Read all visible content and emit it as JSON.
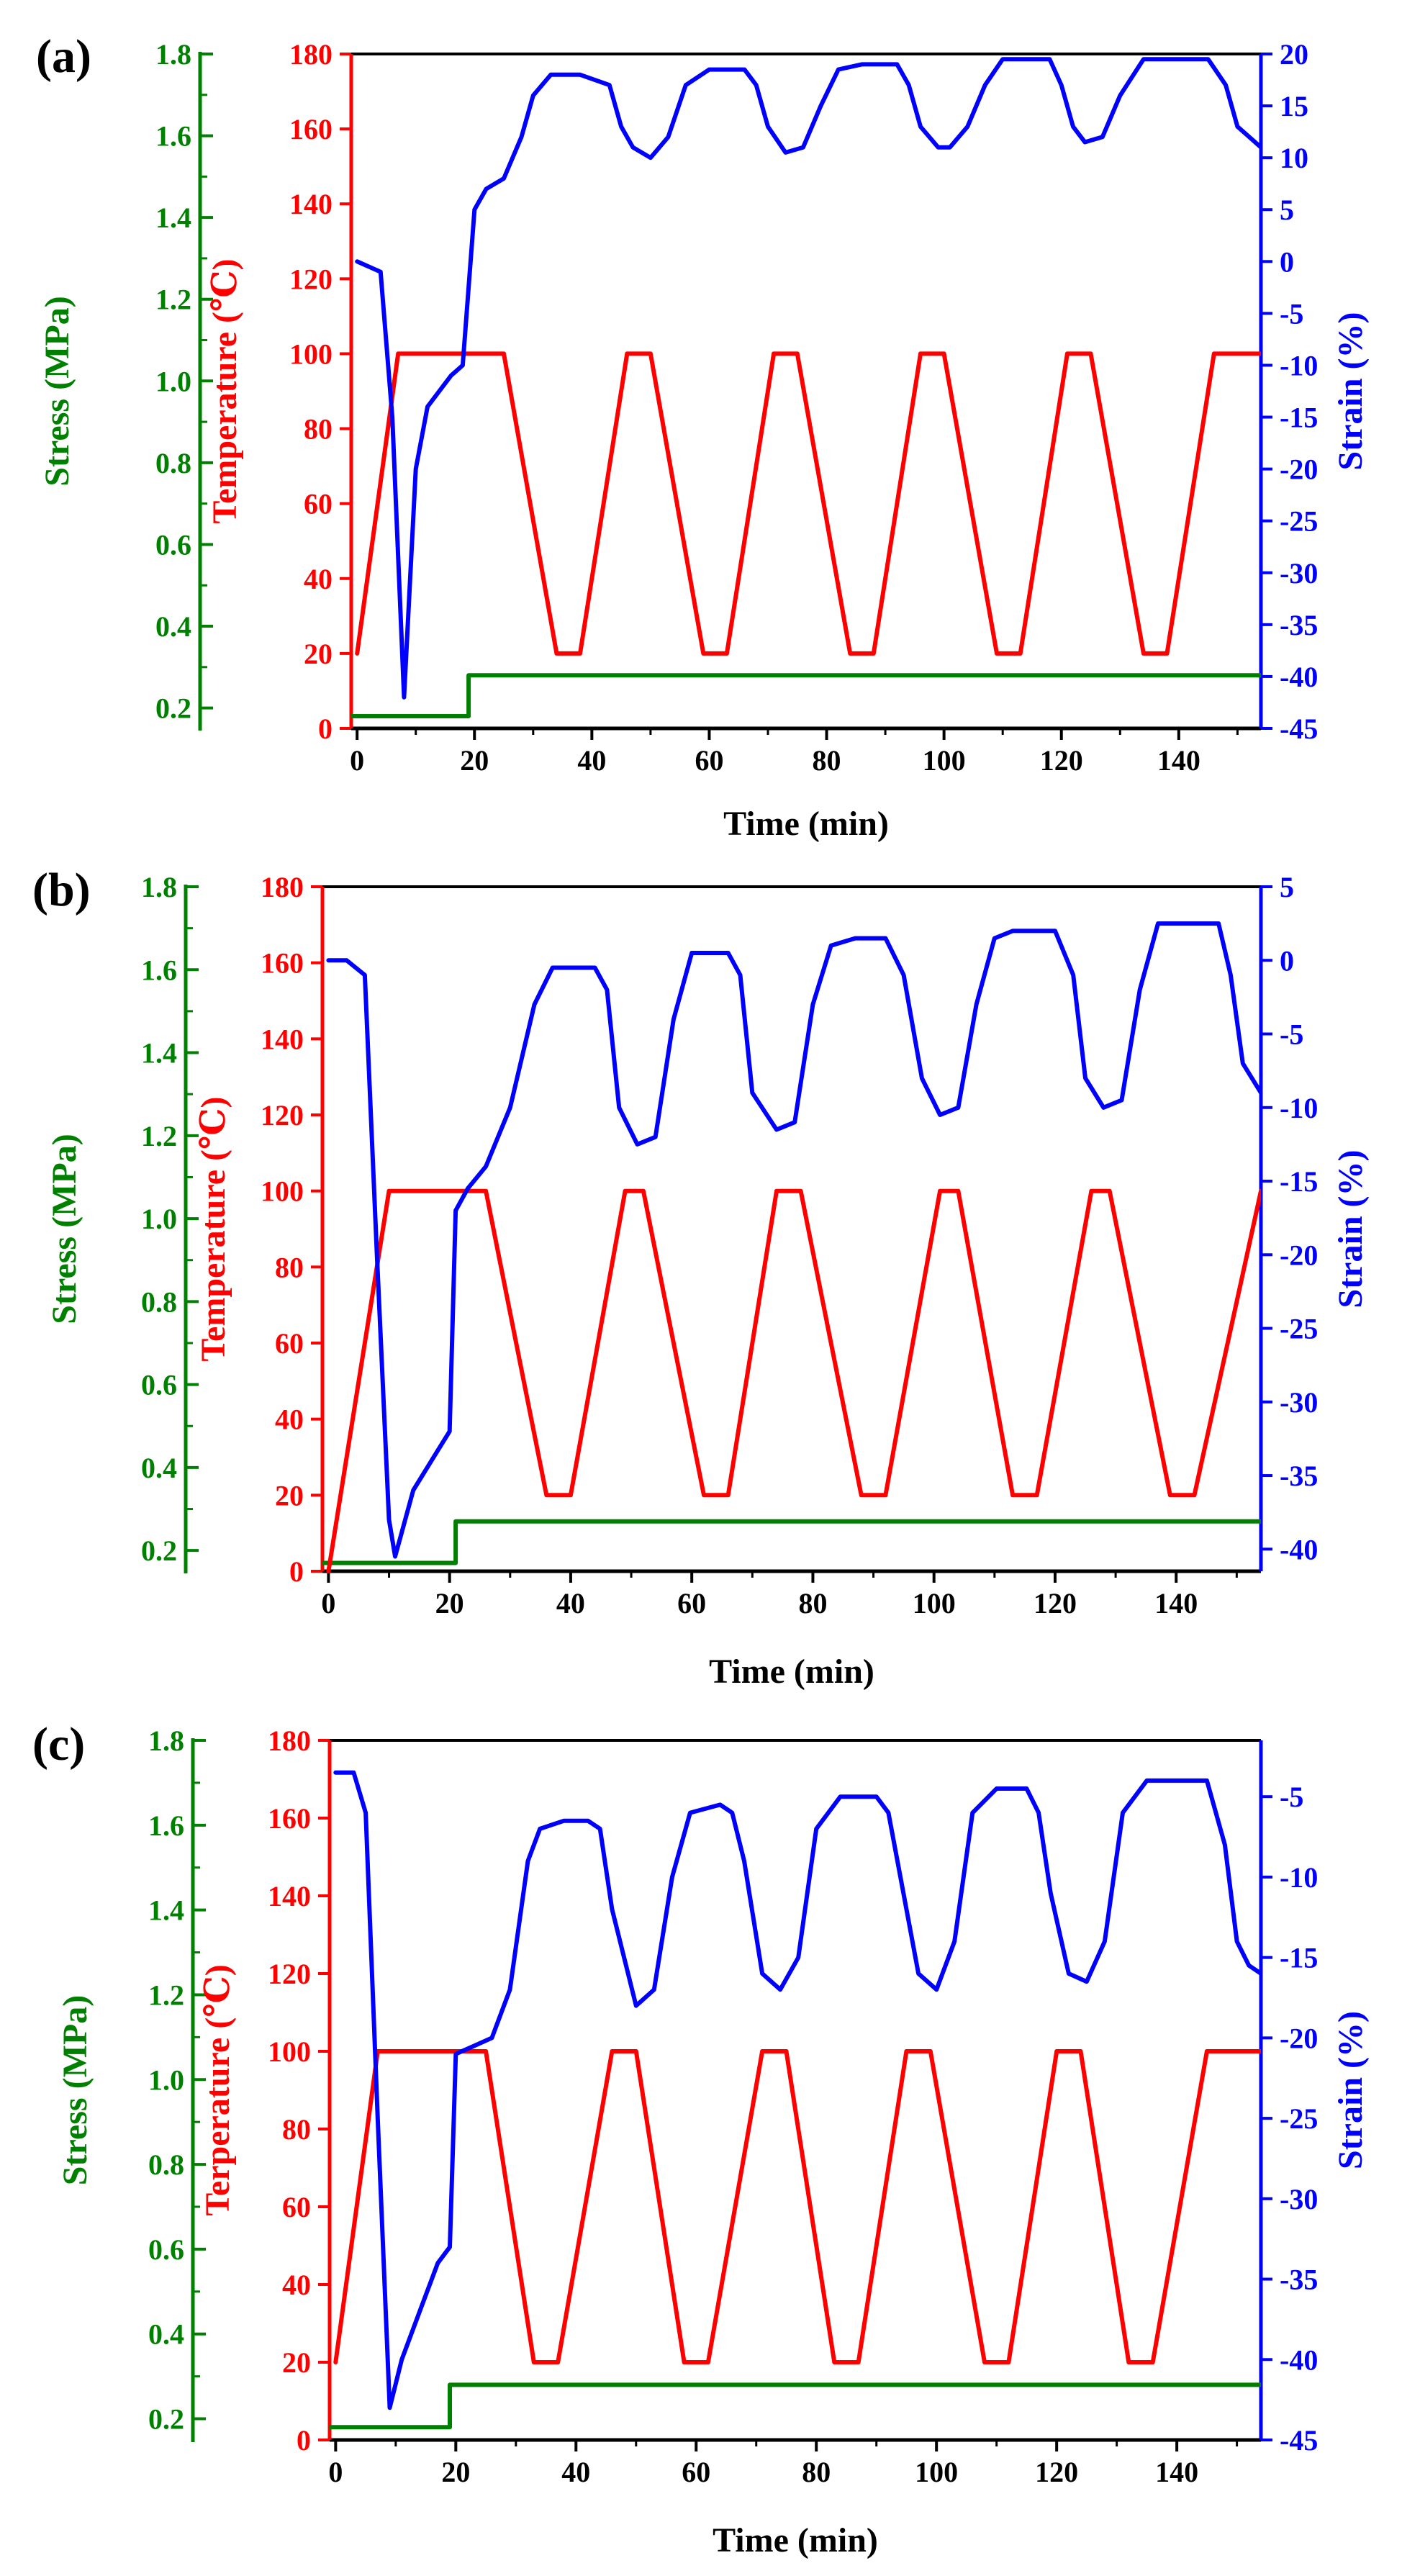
{
  "chart_data": [
    {
      "type": "line",
      "panel_label": "(a)",
      "xlabel": "Time (min)",
      "x_ticks": [
        "0",
        "20",
        "40",
        "60",
        "80",
        "100",
        "120",
        "140"
      ],
      "xlim": [
        -1,
        154
      ],
      "axes": {
        "stress": {
          "label": "Stress (MPa)",
          "lim": [
            0.15,
            1.8
          ],
          "ticks": [
            "0.2",
            "0.4",
            "0.6",
            "0.8",
            "1.0",
            "1.2",
            "1.4",
            "1.6",
            "1.8"
          ],
          "color": "#008000"
        },
        "temperature": {
          "label": "Temperature (℃)",
          "lim": [
            0,
            180
          ],
          "ticks": [
            "0",
            "20",
            "40",
            "60",
            "80",
            "100",
            "120",
            "140",
            "160",
            "180"
          ],
          "color": "#ff0000"
        },
        "strain": {
          "label": "Strain (%)",
          "lim": [
            -45,
            20
          ],
          "ticks": [
            "20",
            "15",
            "10",
            "5",
            "0",
            "-5",
            "-10",
            "-15",
            "-20",
            "-25",
            "-30",
            "-35",
            "-40",
            "-45"
          ],
          "color": "#0000ff"
        }
      },
      "series": [
        {
          "name": "Stress",
          "axis": "stress",
          "color": "#008000",
          "x": [
            -1,
            19,
            19,
            154
          ],
          "y": [
            0.18,
            0.18,
            0.28,
            0.28
          ]
        },
        {
          "name": "Temperature",
          "axis": "temperature",
          "color": "#ff0000",
          "x": [
            0,
            7,
            25,
            34,
            38,
            46,
            50,
            59,
            63,
            71,
            75,
            84,
            88,
            96,
            100,
            109,
            113,
            121,
            125,
            134,
            138,
            146,
            150,
            154
          ],
          "y": [
            20,
            100,
            100,
            20,
            20,
            100,
            100,
            20,
            20,
            100,
            100,
            20,
            20,
            100,
            100,
            20,
            20,
            100,
            100,
            20,
            20,
            100,
            100,
            100
          ]
        },
        {
          "name": "Strain",
          "axis": "strain",
          "color": "#0000ff",
          "x": [
            0,
            4,
            6,
            8,
            10,
            12,
            16,
            18,
            20,
            22,
            25,
            28,
            30,
            33,
            38,
            43,
            45,
            47,
            50,
            53,
            56,
            60,
            66,
            68,
            70,
            73,
            76,
            79,
            82,
            86,
            92,
            94,
            96,
            99,
            101,
            104,
            107,
            110,
            118,
            120,
            122,
            124,
            127,
            130,
            134,
            140,
            145,
            148,
            150,
            152,
            154
          ],
          "y": [
            0,
            -1,
            -15,
            -42,
            -20,
            -14,
            -11,
            -10,
            5,
            7,
            8,
            12,
            16,
            18,
            18,
            17,
            13,
            11,
            10,
            12,
            17,
            18.5,
            18.5,
            17,
            13,
            10.5,
            11,
            15,
            18.5,
            19,
            19,
            17,
            13,
            11,
            11,
            13,
            17,
            19.5,
            19.5,
            17,
            13,
            11.5,
            12,
            16,
            19.5,
            19.5,
            19.5,
            17,
            13,
            12,
            11
          ]
        }
      ]
    },
    {
      "type": "line",
      "panel_label": "(b)",
      "xlabel": "Time (min)",
      "x_ticks": [
        "0",
        "20",
        "40",
        "60",
        "80",
        "100",
        "120",
        "140"
      ],
      "xlim": [
        -1,
        154
      ],
      "axes": {
        "stress": {
          "label": "Stress (MPa)",
          "lim": [
            0.15,
            1.8
          ],
          "ticks": [
            "0.2",
            "0.4",
            "0.6",
            "0.8",
            "1.0",
            "1.2",
            "1.4",
            "1.6",
            "1.8"
          ],
          "color": "#008000"
        },
        "temperature": {
          "label": "Temperature (℃)",
          "lim": [
            0,
            180
          ],
          "ticks": [
            "0",
            "20",
            "40",
            "60",
            "80",
            "100",
            "120",
            "140",
            "160",
            "180"
          ],
          "color": "#ff0000"
        },
        "strain": {
          "label": "Strain (%)",
          "lim": [
            -41.5,
            5
          ],
          "ticks": [
            "5",
            "0",
            "-5",
            "-10",
            "-15",
            "-20",
            "-25",
            "-30",
            "-35",
            "-40"
          ],
          "color": "#0000ff"
        }
      },
      "series": [
        {
          "name": "Stress",
          "axis": "stress",
          "color": "#008000",
          "x": [
            -1,
            21,
            21,
            154
          ],
          "y": [
            0.17,
            0.17,
            0.27,
            0.27
          ]
        },
        {
          "name": "Temperature",
          "axis": "temperature",
          "color": "#ff0000",
          "x": [
            0,
            10,
            26,
            36,
            40,
            49,
            52,
            62,
            66,
            74,
            78,
            88,
            92,
            101,
            104,
            113,
            117,
            126,
            129,
            139,
            143,
            154
          ],
          "y": [
            0,
            100,
            100,
            20,
            20,
            100,
            100,
            20,
            20,
            100,
            100,
            20,
            20,
            100,
            100,
            20,
            20,
            100,
            100,
            20,
            20,
            100
          ]
        },
        {
          "name": "Strain",
          "axis": "strain",
          "color": "#0000ff",
          "x": [
            0,
            3,
            6,
            8,
            10,
            11,
            12,
            14,
            17,
            20,
            21,
            23,
            26,
            30,
            34,
            37,
            40,
            44,
            46,
            48,
            51,
            54,
            57,
            60,
            66,
            68,
            70,
            74,
            77,
            80,
            83,
            87,
            92,
            95,
            98,
            101,
            104,
            107,
            110,
            113,
            120,
            123,
            125,
            128,
            131,
            134,
            137,
            143,
            147,
            149,
            151,
            154
          ],
          "y": [
            0,
            0,
            -1,
            -20,
            -38,
            -40.5,
            -39,
            -36,
            -34,
            -32,
            -17,
            -15.5,
            -14,
            -10,
            -3,
            -0.5,
            -0.5,
            -0.5,
            -2,
            -10,
            -12.5,
            -12,
            -4,
            0.5,
            0.5,
            -1,
            -9,
            -11.5,
            -11,
            -3,
            1,
            1.5,
            1.5,
            -1,
            -8,
            -10.5,
            -10,
            -3,
            1.5,
            2,
            2,
            -1,
            -8,
            -10,
            -9.5,
            -2,
            2.5,
            2.5,
            2.5,
            -1,
            -7,
            -9
          ]
        }
      ]
    },
    {
      "type": "line",
      "panel_label": "(c)",
      "xlabel": "Time (min)",
      "x_ticks": [
        "0",
        "20",
        "40",
        "60",
        "80",
        "100",
        "120",
        "140"
      ],
      "xlim": [
        -1,
        154
      ],
      "axes": {
        "stress": {
          "label": "Stress (MPa)",
          "lim": [
            0.15,
            1.8
          ],
          "ticks": [
            "0.2",
            "0.4",
            "0.6",
            "0.8",
            "1.0",
            "1.2",
            "1.4",
            "1.6",
            "1.8"
          ],
          "color": "#008000"
        },
        "temperature": {
          "label": "Terperature (℃)",
          "lim": [
            0,
            180
          ],
          "ticks": [
            "0",
            "20",
            "40",
            "60",
            "80",
            "100",
            "120",
            "140",
            "160",
            "180"
          ],
          "color": "#ff0000"
        },
        "strain": {
          "label": "Strain (%)",
          "lim": [
            -45,
            -1.5
          ],
          "ticks": [
            "-5",
            "-10",
            "-15",
            "-20",
            "-25",
            "-30",
            "-35",
            "-40",
            "-45"
          ],
          "color": "#0000ff"
        }
      },
      "series": [
        {
          "name": "Stress",
          "axis": "stress",
          "color": "#008000",
          "x": [
            -1,
            19,
            19,
            154
          ],
          "y": [
            0.18,
            0.18,
            0.28,
            0.28
          ]
        },
        {
          "name": "Temperature",
          "axis": "temperature",
          "color": "#ff0000",
          "x": [
            0,
            7,
            25,
            33,
            37,
            46,
            50,
            58,
            62,
            71,
            75,
            83,
            87,
            95,
            99,
            108,
            112,
            120,
            124,
            132,
            136,
            145,
            149,
            154
          ],
          "y": [
            20,
            100,
            100,
            20,
            20,
            100,
            100,
            20,
            20,
            100,
            100,
            20,
            20,
            100,
            100,
            20,
            20,
            100,
            100,
            20,
            20,
            100,
            100,
            100
          ]
        },
        {
          "name": "Strain",
          "axis": "strain",
          "color": "#0000ff",
          "x": [
            0,
            3,
            5,
            7,
            9,
            11,
            14,
            17,
            19,
            20,
            23,
            26,
            29,
            32,
            34,
            38,
            42,
            44,
            46,
            50,
            53,
            56,
            59,
            64,
            66,
            68,
            71,
            74,
            77,
            80,
            84,
            90,
            92,
            94,
            97,
            100,
            103,
            106,
            110,
            115,
            117,
            119,
            122,
            125,
            128,
            131,
            135,
            142,
            145,
            148,
            150,
            152,
            154
          ],
          "y": [
            -3.5,
            -3.5,
            -6,
            -25,
            -43,
            -40,
            -37,
            -34,
            -33,
            -21,
            -20.5,
            -20,
            -17,
            -9,
            -7,
            -6.5,
            -6.5,
            -7,
            -12,
            -18,
            -17,
            -10,
            -6,
            -5.5,
            -6,
            -9,
            -16,
            -17,
            -15,
            -7,
            -5,
            -5,
            -6,
            -10,
            -16,
            -17,
            -14,
            -6,
            -4.5,
            -4.5,
            -6,
            -11,
            -16,
            -16.5,
            -14,
            -6,
            -4,
            -4,
            -4,
            -8,
            -14,
            -15.5,
            -16
          ]
        }
      ]
    }
  ]
}
